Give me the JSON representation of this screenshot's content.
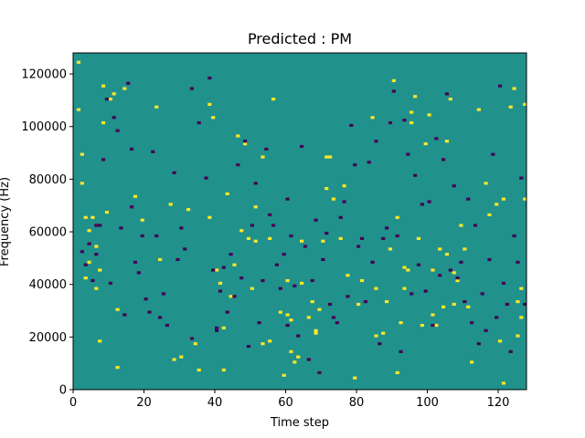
{
  "chart_data": {
    "type": "heatmap",
    "title": "Predicted : PM",
    "xlabel": "Time step",
    "ylabel": "Frequency (Hz)",
    "xlim": [
      0,
      128
    ],
    "ylim": [
      0,
      128000
    ],
    "xticks": [
      0,
      20,
      40,
      60,
      80,
      100,
      120
    ],
    "xtick_labels": [
      "0",
      "20",
      "40",
      "60",
      "80",
      "100",
      "120"
    ],
    "yticks": [
      0,
      20000,
      40000,
      60000,
      80000,
      100000,
      120000
    ],
    "ytick_labels": [
      "0",
      "20000",
      "40000",
      "60000",
      "80000",
      "100000",
      "120000"
    ],
    "grid_shape": [
      128,
      128
    ],
    "colormap": "viridis",
    "value_range": [
      -1,
      1
    ],
    "background_value": 0,
    "colors": {
      "background": "#21918c",
      "low": "#440154",
      "high": "#fde725"
    },
    "high_cells": [
      [
        1,
        106
      ],
      [
        1,
        124
      ],
      [
        2,
        78
      ],
      [
        2,
        89
      ],
      [
        3,
        65
      ],
      [
        3,
        42
      ],
      [
        4,
        60
      ],
      [
        4,
        48
      ],
      [
        5,
        65
      ],
      [
        6,
        54
      ],
      [
        6,
        38
      ],
      [
        7,
        18
      ],
      [
        7,
        45
      ],
      [
        8,
        101
      ],
      [
        8,
        115
      ],
      [
        9,
        67
      ],
      [
        10,
        110
      ],
      [
        11,
        112
      ],
      [
        12,
        8
      ],
      [
        12,
        30
      ],
      [
        14,
        114
      ],
      [
        17,
        73
      ],
      [
        19,
        64
      ],
      [
        23,
        107
      ],
      [
        24,
        49
      ],
      [
        27,
        70
      ],
      [
        28,
        11
      ],
      [
        30,
        12
      ],
      [
        32,
        68
      ],
      [
        33,
        19
      ],
      [
        34,
        17
      ],
      [
        35,
        7
      ],
      [
        38,
        108
      ],
      [
        38,
        65
      ],
      [
        39,
        103
      ],
      [
        40,
        45
      ],
      [
        41,
        40
      ],
      [
        42,
        23
      ],
      [
        42,
        7
      ],
      [
        43,
        74
      ],
      [
        44,
        35
      ],
      [
        45,
        47
      ],
      [
        46,
        96
      ],
      [
        47,
        60
      ],
      [
        48,
        93
      ],
      [
        49,
        57
      ],
      [
        50,
        38
      ],
      [
        51,
        69
      ],
      [
        51,
        56
      ],
      [
        53,
        88
      ],
      [
        53,
        17
      ],
      [
        55,
        57
      ],
      [
        55,
        18
      ],
      [
        56,
        110
      ],
      [
        58,
        29
      ],
      [
        59,
        5
      ],
      [
        60,
        28
      ],
      [
        60,
        41
      ],
      [
        61,
        14
      ],
      [
        61,
        26
      ],
      [
        62,
        10
      ],
      [
        63,
        12
      ],
      [
        64,
        56
      ],
      [
        64,
        40
      ],
      [
        66,
        27
      ],
      [
        67,
        33
      ],
      [
        68,
        21
      ],
      [
        68,
        22
      ],
      [
        69,
        30
      ],
      [
        70,
        56
      ],
      [
        71,
        88
      ],
      [
        71,
        76
      ],
      [
        72,
        88
      ],
      [
        73,
        72
      ],
      [
        75,
        57
      ],
      [
        76,
        77
      ],
      [
        77,
        43
      ],
      [
        79,
        4
      ],
      [
        80,
        32
      ],
      [
        81,
        41
      ],
      [
        84,
        103
      ],
      [
        85,
        20
      ],
      [
        85,
        38
      ],
      [
        87,
        21
      ],
      [
        88,
        33
      ],
      [
        89,
        53
      ],
      [
        90,
        117
      ],
      [
        91,
        6
      ],
      [
        91,
        65
      ],
      [
        92,
        25
      ],
      [
        93,
        38
      ],
      [
        93,
        46
      ],
      [
        94,
        45
      ],
      [
        95,
        105
      ],
      [
        95,
        101
      ],
      [
        96,
        111
      ],
      [
        97,
        57
      ],
      [
        98,
        24
      ],
      [
        99,
        93
      ],
      [
        100,
        104
      ],
      [
        101,
        28
      ],
      [
        101,
        45
      ],
      [
        102,
        24
      ],
      [
        103,
        53
      ],
      [
        104,
        31
      ],
      [
        105,
        94
      ],
      [
        105,
        51
      ],
      [
        106,
        110
      ],
      [
        107,
        32
      ],
      [
        107,
        44
      ],
      [
        108,
        41
      ],
      [
        109,
        62
      ],
      [
        110,
        53
      ],
      [
        111,
        31
      ],
      [
        112,
        10
      ],
      [
        114,
        106
      ],
      [
        116,
        78
      ],
      [
        117,
        66
      ],
      [
        119,
        70
      ],
      [
        120,
        18
      ],
      [
        121,
        2
      ],
      [
        121,
        72
      ],
      [
        123,
        107
      ],
      [
        124,
        114
      ],
      [
        125,
        20
      ],
      [
        125,
        33
      ],
      [
        126,
        27
      ],
      [
        126,
        38
      ],
      [
        127,
        72
      ],
      [
        127,
        108
      ]
    ],
    "low_cells": [
      [
        2,
        52
      ],
      [
        3,
        47
      ],
      [
        4,
        55
      ],
      [
        5,
        41
      ],
      [
        6,
        62
      ],
      [
        6,
        51
      ],
      [
        7,
        62
      ],
      [
        8,
        87
      ],
      [
        9,
        110
      ],
      [
        10,
        40
      ],
      [
        11,
        103
      ],
      [
        12,
        98
      ],
      [
        13,
        61
      ],
      [
        14,
        28
      ],
      [
        15,
        116
      ],
      [
        16,
        69
      ],
      [
        16,
        91
      ],
      [
        17,
        48
      ],
      [
        18,
        44
      ],
      [
        19,
        58
      ],
      [
        20,
        34
      ],
      [
        21,
        29
      ],
      [
        22,
        90
      ],
      [
        23,
        58
      ],
      [
        24,
        27
      ],
      [
        25,
        36
      ],
      [
        26,
        24
      ],
      [
        28,
        82
      ],
      [
        29,
        49
      ],
      [
        30,
        61
      ],
      [
        31,
        53
      ],
      [
        33,
        114
      ],
      [
        33,
        19
      ],
      [
        35,
        101
      ],
      [
        37,
        80
      ],
      [
        38,
        118
      ],
      [
        39,
        45
      ],
      [
        40,
        22
      ],
      [
        40,
        23
      ],
      [
        41,
        37
      ],
      [
        42,
        46
      ],
      [
        43,
        29
      ],
      [
        44,
        51
      ],
      [
        45,
        35
      ],
      [
        46,
        85
      ],
      [
        47,
        42
      ],
      [
        48,
        94
      ],
      [
        49,
        16
      ],
      [
        50,
        62
      ],
      [
        51,
        78
      ],
      [
        52,
        25
      ],
      [
        53,
        41
      ],
      [
        54,
        91
      ],
      [
        55,
        66
      ],
      [
        56,
        62
      ],
      [
        57,
        47
      ],
      [
        58,
        38
      ],
      [
        59,
        51
      ],
      [
        60,
        72
      ],
      [
        60,
        24
      ],
      [
        61,
        58
      ],
      [
        62,
        39
      ],
      [
        63,
        20
      ],
      [
        64,
        92
      ],
      [
        65,
        54
      ],
      [
        66,
        11
      ],
      [
        67,
        41
      ],
      [
        68,
        64
      ],
      [
        69,
        6
      ],
      [
        70,
        49
      ],
      [
        71,
        59
      ],
      [
        72,
        32
      ],
      [
        73,
        27
      ],
      [
        74,
        25
      ],
      [
        75,
        65
      ],
      [
        76,
        71
      ],
      [
        77,
        35
      ],
      [
        78,
        100
      ],
      [
        79,
        85
      ],
      [
        80,
        54
      ],
      [
        81,
        57
      ],
      [
        82,
        33
      ],
      [
        83,
        86
      ],
      [
        84,
        48
      ],
      [
        85,
        94
      ],
      [
        86,
        17
      ],
      [
        87,
        57
      ],
      [
        88,
        61
      ],
      [
        89,
        101
      ],
      [
        90,
        113
      ],
      [
        91,
        58
      ],
      [
        92,
        14
      ],
      [
        93,
        102
      ],
      [
        94,
        89
      ],
      [
        95,
        36
      ],
      [
        96,
        81
      ],
      [
        97,
        47
      ],
      [
        98,
        70
      ],
      [
        99,
        37
      ],
      [
        100,
        71
      ],
      [
        101,
        24
      ],
      [
        102,
        95
      ],
      [
        103,
        43
      ],
      [
        104,
        87
      ],
      [
        105,
        112
      ],
      [
        106,
        45
      ],
      [
        107,
        77
      ],
      [
        108,
        42
      ],
      [
        109,
        48
      ],
      [
        110,
        33
      ],
      [
        111,
        72
      ],
      [
        112,
        25
      ],
      [
        113,
        62
      ],
      [
        114,
        17
      ],
      [
        115,
        36
      ],
      [
        116,
        22
      ],
      [
        117,
        49
      ],
      [
        118,
        89
      ],
      [
        119,
        27
      ],
      [
        120,
        115
      ],
      [
        121,
        40
      ],
      [
        122,
        32
      ],
      [
        123,
        14
      ],
      [
        124,
        58
      ],
      [
        125,
        48
      ],
      [
        126,
        80
      ],
      [
        127,
        32
      ]
    ]
  }
}
